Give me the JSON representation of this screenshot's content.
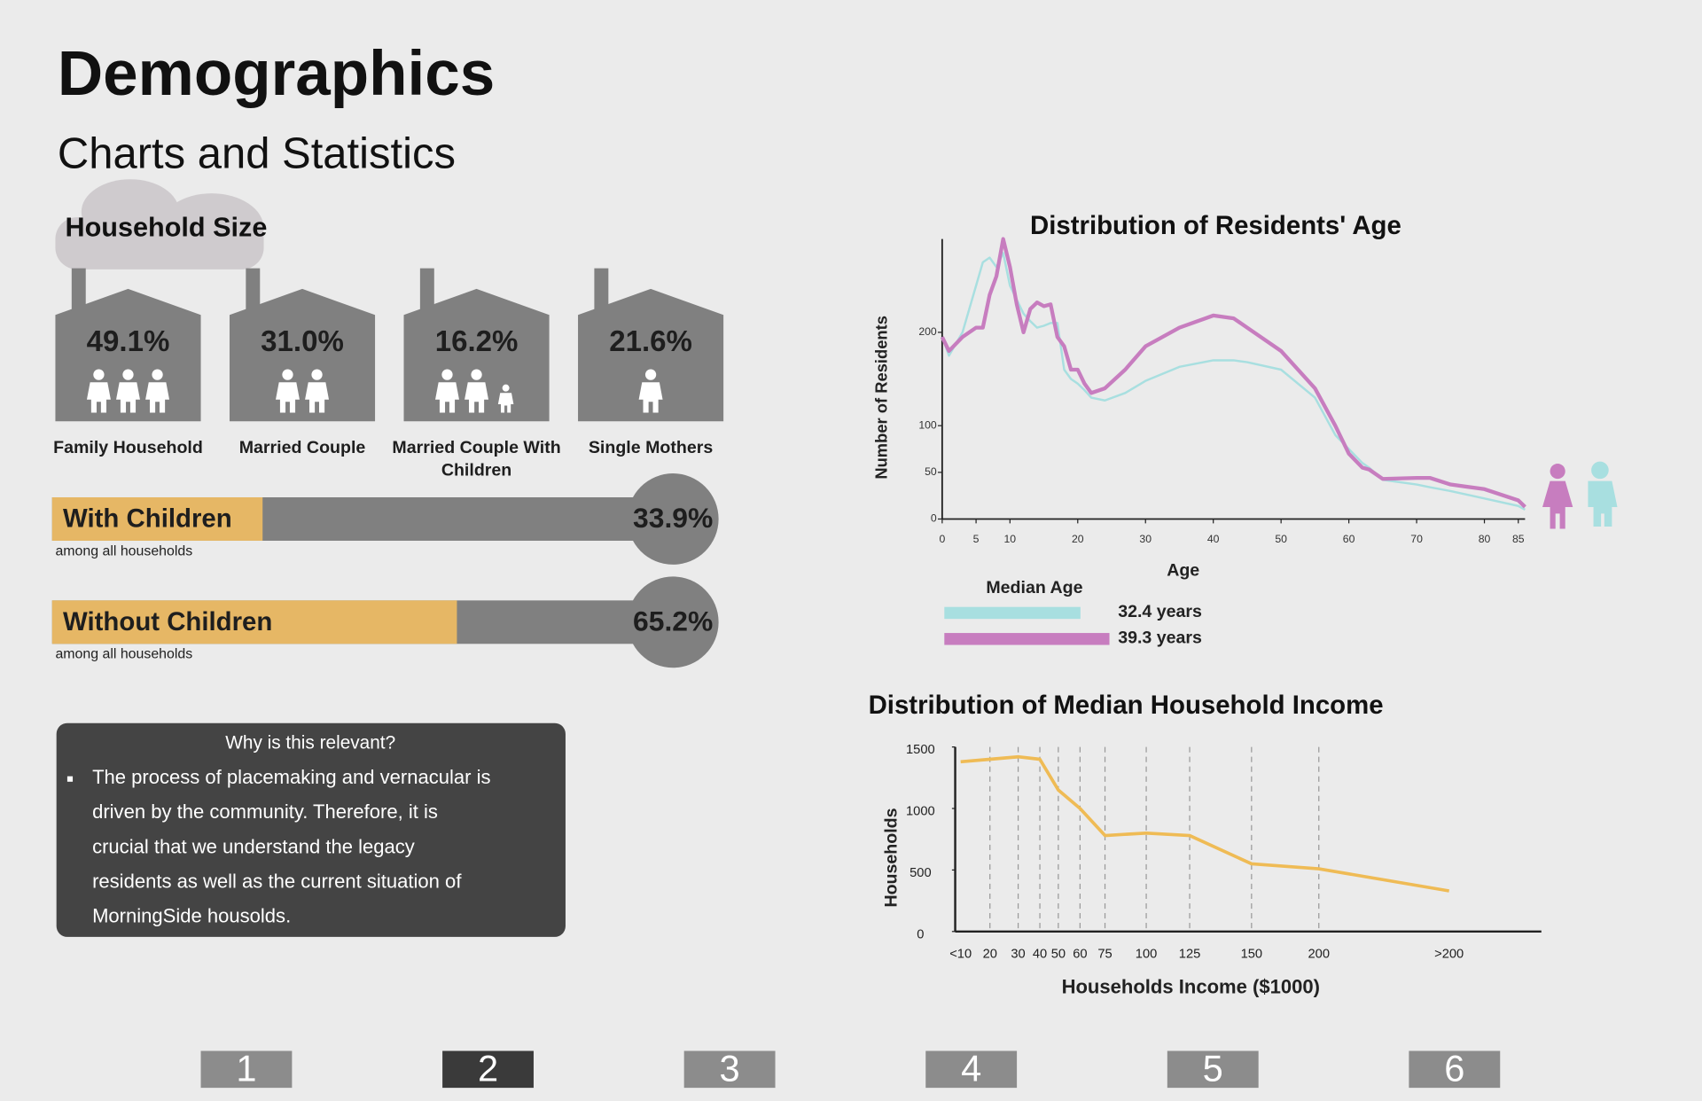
{
  "header": {
    "title": "Demographics",
    "subtitle": "Charts and Statistics"
  },
  "household_size": {
    "title": "Household Size",
    "items": [
      {
        "value": "49.1%",
        "label": "Family Household"
      },
      {
        "value": "31.0%",
        "label": "Married Couple"
      },
      {
        "value": "16.2%",
        "label": "Married Couple With Children"
      },
      {
        "value": "21.6%",
        "label": "Single Mothers"
      }
    ]
  },
  "children": {
    "color": "#e6b765",
    "items": [
      {
        "label": "With Children",
        "value": 33.9,
        "value_label": "33.9%",
        "note": "among all households"
      },
      {
        "label": "Without Children",
        "value": 65.2,
        "value_label": "65.2%",
        "note": "among all households"
      }
    ]
  },
  "relevance": {
    "title": "Why is this relevant?",
    "lines": [
      "The process of placemaking and vernacular is",
      "driven by the community.  Therefore, it is",
      "crucial that we understand the legacy",
      "residents as well as the current situation of",
      "MorningSide housolds."
    ]
  },
  "chart_data": [
    {
      "type": "line",
      "title": "Distribution of Residents' Age",
      "x_label": "Age",
      "y_label": "Number of Residents",
      "x": [
        0,
        1,
        3,
        5,
        6,
        7,
        8,
        9,
        10,
        11,
        12,
        13,
        14,
        15,
        16,
        17,
        18,
        19,
        20,
        21,
        22,
        24,
        27,
        30,
        35,
        40,
        43,
        45,
        50,
        55,
        58,
        60,
        62,
        63,
        65,
        70,
        72,
        75,
        80,
        85,
        86
      ],
      "series": [
        {
          "color": "#a8dfe0",
          "values": [
            195,
            175,
            200,
            250,
            275,
            280,
            270,
            285,
            250,
            235,
            220,
            212,
            205,
            207,
            210,
            210,
            160,
            150,
            145,
            138,
            130,
            127,
            135,
            148,
            163,
            170,
            170,
            168,
            160,
            130,
            90,
            75,
            60,
            55,
            42,
            37,
            34,
            30,
            22,
            14,
            10
          ]
        },
        {
          "color": "#c77dbf",
          "values": [
            195,
            180,
            195,
            205,
            205,
            240,
            260,
            300,
            270,
            230,
            200,
            225,
            232,
            228,
            230,
            195,
            185,
            160,
            160,
            145,
            135,
            140,
            160,
            185,
            205,
            218,
            215,
            205,
            180,
            140,
            100,
            70,
            55,
            53,
            43,
            44,
            44,
            37,
            32,
            20,
            13
          ]
        }
      ],
      "xlim": [
        0,
        86
      ],
      "xticks": [
        0,
        5,
        10,
        20,
        30,
        40,
        50,
        60,
        70,
        80,
        85
      ],
      "ylim": [
        0,
        300
      ],
      "yticks": [
        0,
        50,
        100,
        200
      ],
      "median_age": {
        "title": "Median Age",
        "values": [
          32.4,
          39.3
        ],
        "value_labels": [
          "32.4 years",
          "39.3 years"
        ]
      }
    },
    {
      "type": "line",
      "title": "Distribution of Median Household Income",
      "x_label": "Households Income ($1000)",
      "y_label": "Households",
      "categories": [
        "<10",
        "20",
        "30",
        "40",
        "50",
        "60",
        "75",
        "100",
        "125",
        "150",
        "200",
        ">200"
      ],
      "series": [
        {
          "color": "#efbb55",
          "values": [
            1380,
            1400,
            1420,
            1400,
            1150,
            1000,
            780,
            800,
            780,
            550,
            510,
            330
          ]
        }
      ],
      "ylim": [
        0,
        1500
      ],
      "yticks": [
        0,
        500,
        1000,
        1500
      ],
      "grid": true
    }
  ],
  "pagination": {
    "pages": [
      "1",
      "2",
      "3",
      "4",
      "5",
      "6"
    ],
    "active": "2"
  }
}
